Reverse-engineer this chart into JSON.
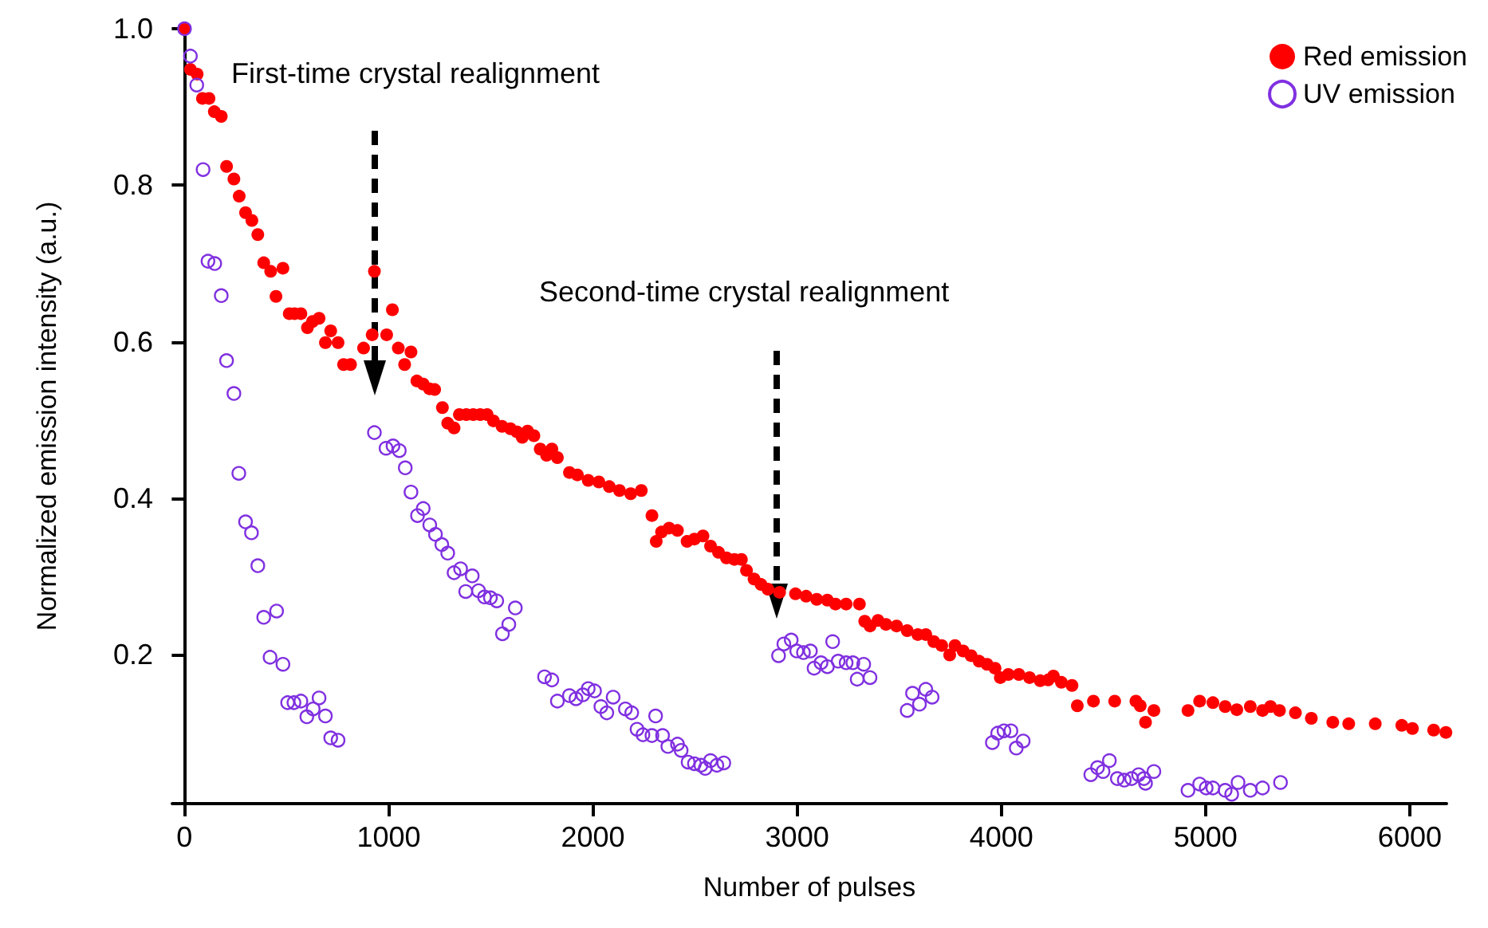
{
  "chart_data": {
    "type": "scatter",
    "xlabel": "Number of pulses",
    "ylabel": "Normalized emission intensity (a.u.)",
    "xlim": [
      -60,
      6180
    ],
    "xticks": [
      0,
      1000,
      2000,
      3000,
      4000,
      5000,
      6000
    ],
    "ylim": [
      0.01,
      1.0
    ],
    "yticks": [
      0.2,
      0.4,
      0.6,
      0.8,
      {
        "value": 1.0,
        "label": "1.0"
      }
    ],
    "grid": false,
    "legend": "top right",
    "marker": "circle",
    "annotations": [
      "First-time crystal realignment",
      "Second-time crystal realignment"
    ],
    "series": [
      {
        "name": "Red emission",
        "color": "#ff0000",
        "x": [
          0,
          29,
          62,
          88,
          120,
          146,
          180,
          206,
          242,
          268,
          299,
          330,
          359,
          388,
          422,
          448,
          482,
          513,
          539,
          570,
          602,
          627,
          659,
          690,
          716,
          752,
          779,
          813,
          877,
          919,
          930,
          990,
          1018,
          1047,
          1078,
          1109,
          1138,
          1169,
          1200,
          1225,
          1263,
          1289,
          1320,
          1346,
          1380,
          1414,
          1448,
          1482,
          1513,
          1555,
          1596,
          1628,
          1654,
          1680,
          1711,
          1742,
          1773,
          1799,
          1826,
          1885,
          1924,
          1977,
          2029,
          2080,
          2130,
          2185,
          2237,
          2289,
          2310,
          2336,
          2373,
          2414,
          2461,
          2497,
          2539,
          2576,
          2615,
          2654,
          2693,
          2727,
          2752,
          2789,
          2823,
          2857,
          2914,
          2992,
          3044,
          3096,
          3148,
          3188,
          3240,
          3305,
          3331,
          3357,
          3396,
          3435,
          3487,
          3539,
          3591,
          3630,
          3669,
          3708,
          3747,
          3773,
          3813,
          3852,
          3891,
          3930,
          3969,
          3995,
          4034,
          4086,
          4138,
          4190,
          4229,
          4255,
          4294,
          4346,
          4372,
          4451,
          4555,
          4659,
          4680,
          4706,
          4747,
          4914,
          4971,
          5036,
          5096,
          5153,
          5219,
          5279,
          5318,
          5362,
          5440,
          5518,
          5623,
          5701,
          5831,
          5961,
          6013,
          6117,
          6177
        ],
        "values": [
          1.0,
          0.948,
          0.942,
          0.911,
          0.911,
          0.894,
          0.888,
          0.824,
          0.808,
          0.786,
          0.765,
          0.755,
          0.737,
          0.701,
          0.69,
          0.658,
          0.694,
          0.636,
          0.636,
          0.636,
          0.618,
          0.626,
          0.63,
          0.599,
          0.614,
          0.599,
          0.571,
          0.571,
          0.592,
          0.609,
          0.69,
          0.609,
          0.641,
          0.592,
          0.571,
          0.587,
          0.55,
          0.546,
          0.54,
          0.539,
          0.516,
          0.496,
          0.49,
          0.507,
          0.507,
          0.507,
          0.507,
          0.507,
          0.499,
          0.492,
          0.489,
          0.485,
          0.478,
          0.486,
          0.48,
          0.463,
          0.455,
          0.463,
          0.452,
          0.433,
          0.43,
          0.423,
          0.421,
          0.415,
          0.41,
          0.406,
          0.41,
          0.378,
          0.345,
          0.357,
          0.362,
          0.359,
          0.345,
          0.348,
          0.352,
          0.339,
          0.331,
          0.324,
          0.322,
          0.322,
          0.308,
          0.297,
          0.29,
          0.284,
          0.28,
          0.278,
          0.275,
          0.271,
          0.27,
          0.265,
          0.265,
          0.265,
          0.243,
          0.237,
          0.244,
          0.239,
          0.237,
          0.231,
          0.226,
          0.226,
          0.217,
          0.212,
          0.2,
          0.212,
          0.205,
          0.199,
          0.192,
          0.188,
          0.183,
          0.171,
          0.175,
          0.175,
          0.171,
          0.167,
          0.168,
          0.173,
          0.165,
          0.161,
          0.135,
          0.141,
          0.141,
          0.141,
          0.135,
          0.114,
          0.129,
          0.129,
          0.141,
          0.139,
          0.134,
          0.13,
          0.134,
          0.129,
          0.134,
          0.129,
          0.126,
          0.119,
          0.114,
          0.112,
          0.112,
          0.11,
          0.106,
          0.104,
          0.101
        ]
      },
      {
        "name": "UV emission",
        "color": "#8030e0",
        "x": [
          0,
          29,
          60,
          91,
          115,
          148,
          180,
          206,
          242,
          266,
          299,
          328,
          359,
          388,
          451,
          419,
          482,
          505,
          536,
          570,
          599,
          630,
          659,
          690,
          716,
          752,
          930,
          987,
          1021,
          1052,
          1081,
          1109,
          1141,
          1169,
          1201,
          1229,
          1260,
          1289,
          1320,
          1352,
          1377,
          1409,
          1440,
          1469,
          1498,
          1529,
          1557,
          1588,
          1620,
          1763,
          1799,
          1826,
          1885,
          1917,
          1951,
          1977,
          2008,
          2039,
          2068,
          2099,
          2159,
          2190,
          2216,
          2245,
          2289,
          2307,
          2341,
          2367,
          2414,
          2432,
          2466,
          2497,
          2529,
          2550,
          2576,
          2607,
          2641,
          2909,
          2935,
          2971,
          2998,
          3031,
          3065,
          3083,
          3117,
          3148,
          3174,
          3201,
          3240,
          3273,
          3294,
          3326,
          3357,
          3539,
          3565,
          3599,
          3630,
          3661,
          3956,
          3982,
          4013,
          4047,
          4073,
          4107,
          4438,
          4471,
          4498,
          4529,
          4568,
          4602,
          4638,
          4672,
          4698,
          4706,
          4747,
          4914,
          4971,
          5003,
          5036,
          5096,
          5128,
          5159,
          5219,
          5279,
          5367
        ],
        "values": [
          1.0,
          0.965,
          0.928,
          0.82,
          0.703,
          0.7,
          0.659,
          0.576,
          0.534,
          0.432,
          0.37,
          0.356,
          0.314,
          0.248,
          0.256,
          0.197,
          0.188,
          0.139,
          0.139,
          0.141,
          0.121,
          0.131,
          0.145,
          0.122,
          0.094,
          0.091,
          0.484,
          0.464,
          0.467,
          0.461,
          0.439,
          0.408,
          0.378,
          0.387,
          0.366,
          0.354,
          0.341,
          0.33,
          0.305,
          0.31,
          0.281,
          0.301,
          0.282,
          0.274,
          0.273,
          0.269,
          0.227,
          0.239,
          0.26,
          0.172,
          0.168,
          0.141,
          0.148,
          0.144,
          0.149,
          0.157,
          0.154,
          0.134,
          0.126,
          0.146,
          0.131,
          0.126,
          0.105,
          0.098,
          0.097,
          0.122,
          0.097,
          0.083,
          0.086,
          0.078,
          0.063,
          0.061,
          0.059,
          0.055,
          0.065,
          0.059,
          0.062,
          0.199,
          0.214,
          0.219,
          0.205,
          0.203,
          0.205,
          0.183,
          0.19,
          0.185,
          0.217,
          0.192,
          0.19,
          0.19,
          0.169,
          0.188,
          0.171,
          0.129,
          0.151,
          0.137,
          0.156,
          0.146,
          0.088,
          0.1,
          0.103,
          0.103,
          0.081,
          0.09,
          0.047,
          0.056,
          0.051,
          0.065,
          0.042,
          0.04,
          0.042,
          0.047,
          0.042,
          0.036,
          0.051,
          0.027,
          0.035,
          0.03,
          0.03,
          0.027,
          0.022,
          0.037,
          0.027,
          0.03,
          0.037
        ]
      }
    ]
  }
}
